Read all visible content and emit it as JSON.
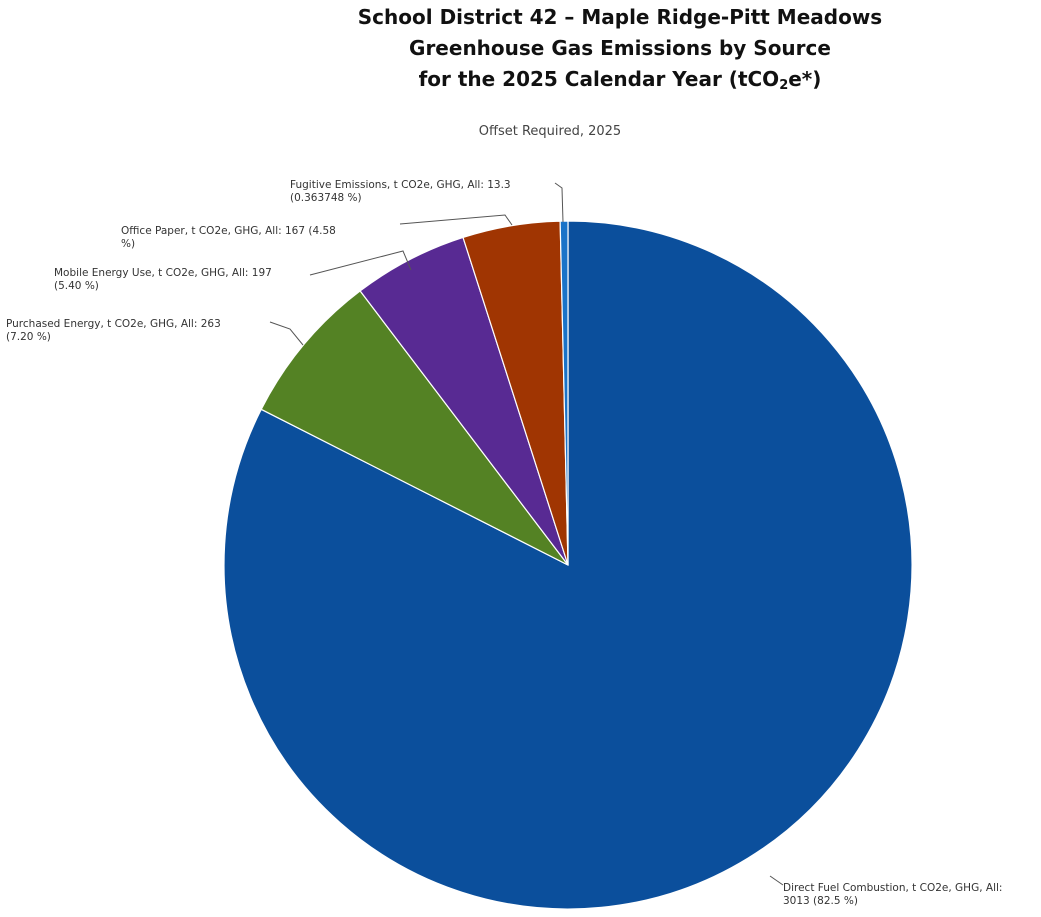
{
  "title": {
    "line1": "School District 42 – Maple Ridge-Pitt Meadows",
    "line2": "Greenhouse Gas Emissions by Source",
    "line3_prefix": "for the 2025 Calendar Year (tCO",
    "line3_sub": "2",
    "line3_suffix": "e*)"
  },
  "subtitle": "Offset Required, 2025",
  "chart_data": {
    "type": "pie",
    "title": "Offset Required, 2025",
    "start_angle_deg": 0,
    "direction": "clockwise",
    "slices": [
      {
        "name": "Direct Fuel Combustion",
        "value": 3013,
        "percent": 82.5,
        "color": "#0b4f9c",
        "label_lines": [
          "Direct Fuel Combustion, t CO2e, GHG, All:",
          "3013 (82.5 %)"
        ]
      },
      {
        "name": "Purchased Energy",
        "value": 263,
        "percent": 7.2,
        "color": "#548224",
        "label_lines": [
          "Purchased Energy, t CO2e, GHG, All: 263",
          "(7.20 %)"
        ]
      },
      {
        "name": "Mobile Energy Use",
        "value": 197,
        "percent": 5.4,
        "color": "#582a93",
        "label_lines": [
          "Mobile Energy Use, t CO2e, GHG, All: 197",
          "(5.40 %)"
        ]
      },
      {
        "name": "Office Paper",
        "value": 167,
        "percent": 4.58,
        "color": "#a03502",
        "label_lines": [
          "Office Paper, t CO2e, GHG, All: 167 (4.58",
          "%)"
        ]
      },
      {
        "name": "Fugitive Emissions",
        "value": 13.3,
        "percent": 0.363748,
        "color": "#1a73c8",
        "label_lines": [
          "Fugitive Emissions, t CO2e, GHG, All: 13.3",
          "(0.363748 %)"
        ]
      }
    ]
  }
}
